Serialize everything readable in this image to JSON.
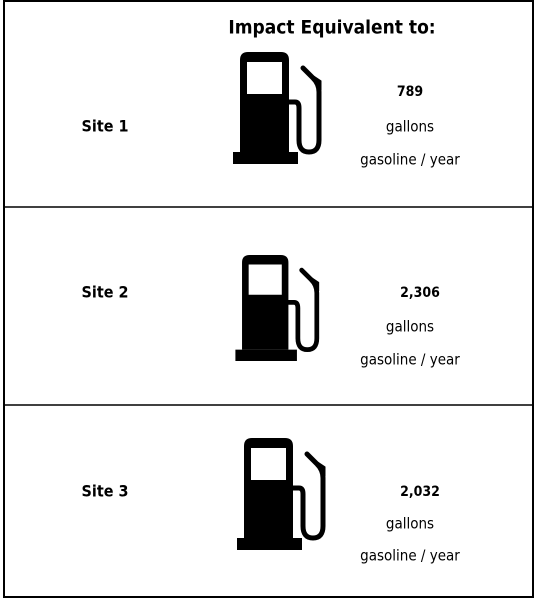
{
  "header": {
    "title": "Impact Equivalent to:"
  },
  "rows": [
    {
      "site": "Site 1",
      "value": "789",
      "unit": "gallons",
      "detail": "gasoline / year"
    },
    {
      "site": "Site 2",
      "value": "2,306",
      "unit": "gallons",
      "detail": "gasoline / year"
    },
    {
      "site": "Site 3",
      "value": "2,032",
      "unit": "gallons",
      "detail": "gasoline / year"
    }
  ]
}
